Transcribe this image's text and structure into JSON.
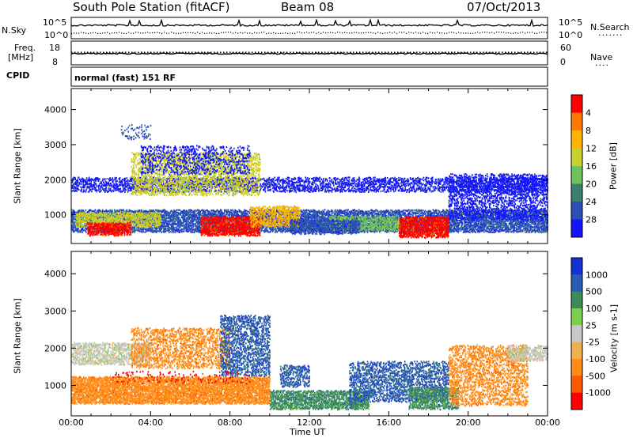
{
  "header": {
    "station": "South Pole Station (fitACF)",
    "beam": "Beam 08",
    "date": "07/Oct/2013"
  },
  "panels": {
    "nsky": {
      "label": "N.Sky",
      "right_label": "N.Search",
      "ticks_left": [
        "10^5",
        "10^0"
      ],
      "ticks_right": [
        "10^5",
        "10^0"
      ]
    },
    "freq": {
      "label_line1": "Freq.",
      "label_line2": "[MHz]",
      "right_label": "Nave",
      "ticks_left": [
        "18",
        "8"
      ],
      "ticks_right": [
        "60",
        "0"
      ]
    },
    "cpid": {
      "label": "CPID",
      "text": "normal (fast) 151 RF"
    }
  },
  "chart_data": [
    {
      "type": "heatmap",
      "name": "power",
      "ylabel": "Slant Range [km]",
      "ylim": [
        180,
        4600
      ],
      "yticks": [
        "1000",
        "2000",
        "3000",
        "4000"
      ],
      "colorbar": {
        "label": "Power [dB]",
        "colors": [
          "#1414ff",
          "#2a4fb8",
          "#3c7f6e",
          "#6ec25e",
          "#c8d22a",
          "#ffb400",
          "#ff7800",
          "#ff0000"
        ],
        "ticks": [
          "4",
          "8",
          "12",
          "16",
          "20",
          "24",
          "28"
        ]
      },
      "regions": [
        {
          "t0": 0.0,
          "t1": 24.0,
          "r0": 1700,
          "r1": 2100,
          "color": 0,
          "density": 0.35
        },
        {
          "t0": 0.0,
          "t1": 24.0,
          "r0": 550,
          "r1": 1200,
          "color": 1,
          "density": 0.55
        },
        {
          "t0": 0.2,
          "t1": 4.5,
          "r0": 700,
          "r1": 1100,
          "color": 4,
          "density": 0.5
        },
        {
          "t0": 0.8,
          "t1": 3.0,
          "r0": 450,
          "r1": 800,
          "color": 7,
          "density": 0.6
        },
        {
          "t0": 6.5,
          "t1": 9.5,
          "r0": 450,
          "r1": 1000,
          "color": 7,
          "density": 0.65
        },
        {
          "t0": 9.0,
          "t1": 11.5,
          "r0": 700,
          "r1": 1300,
          "color": 5,
          "density": 0.4
        },
        {
          "t0": 16.5,
          "t1": 19.0,
          "r0": 400,
          "r1": 1000,
          "color": 7,
          "density": 0.65
        },
        {
          "t0": 13.0,
          "t1": 16.5,
          "r0": 600,
          "r1": 1000,
          "color": 3,
          "density": 0.5
        },
        {
          "t0": 3.0,
          "t1": 9.5,
          "r0": 1600,
          "r1": 2800,
          "color": 4,
          "density": 0.3
        },
        {
          "t0": 3.5,
          "t1": 9.0,
          "r0": 2200,
          "r1": 3000,
          "color": 0,
          "density": 0.18
        },
        {
          "t0": 19.0,
          "t1": 24.0,
          "r0": 900,
          "r1": 2200,
          "color": 0,
          "density": 0.3
        },
        {
          "t0": 11.0,
          "t1": 14.5,
          "r0": 500,
          "r1": 900,
          "color": 1,
          "density": 0.5
        },
        {
          "t0": 2.5,
          "t1": 4.0,
          "r0": 3200,
          "r1": 3600,
          "color": 1,
          "density": 0.1
        }
      ]
    },
    {
      "type": "heatmap",
      "name": "velocity",
      "xlabel": "Time UT",
      "ylabel": "Slant Range [km]",
      "ylim": [
        180,
        4600
      ],
      "yticks": [
        "1000",
        "2000",
        "3000",
        "4000"
      ],
      "xticks": [
        "00:00",
        "04:00",
        "08:00",
        "12:00",
        "16:00",
        "20:00",
        "00:00"
      ],
      "colorbar": {
        "label": "Velocity [m s-1]",
        "colors": [
          "#ff0000",
          "#ff5a00",
          "#ff8c14",
          "#f0b050",
          "#c8c8c8",
          "#7cd050",
          "#3c8c5a",
          "#2a5ab4",
          "#1432d2"
        ],
        "ticks": [
          "1000",
          "500",
          "100",
          "25",
          "-25",
          "-100",
          "-500",
          "-1000"
        ]
      },
      "regions": [
        {
          "t0": 0.0,
          "t1": 10.0,
          "r0": 550,
          "r1": 1250,
          "color": 2,
          "density": 0.7
        },
        {
          "t0": 0.0,
          "t1": 4.0,
          "r0": 1600,
          "r1": 2200,
          "color": 4,
          "density": 0.45
        },
        {
          "t0": 3.0,
          "t1": 8.0,
          "r0": 1500,
          "r1": 2600,
          "color": 2,
          "density": 0.3
        },
        {
          "t0": 7.5,
          "t1": 10.0,
          "r0": 1300,
          "r1": 2900,
          "color": 7,
          "density": 0.35
        },
        {
          "t0": 10.0,
          "t1": 15.0,
          "r0": 400,
          "r1": 900,
          "color": 6,
          "density": 0.6
        },
        {
          "t0": 10.5,
          "t1": 12.0,
          "r0": 1000,
          "r1": 1600,
          "color": 7,
          "density": 0.35
        },
        {
          "t0": 14.0,
          "t1": 19.0,
          "r0": 600,
          "r1": 1700,
          "color": 7,
          "density": 0.35
        },
        {
          "t0": 17.0,
          "t1": 19.5,
          "r0": 400,
          "r1": 1000,
          "color": 6,
          "density": 0.5
        },
        {
          "t0": 19.0,
          "t1": 23.0,
          "r0": 500,
          "r1": 2100,
          "color": 2,
          "density": 0.3
        },
        {
          "t0": 22.0,
          "t1": 24.0,
          "r0": 1700,
          "r1": 2100,
          "color": 4,
          "density": 0.45
        },
        {
          "t0": 2.0,
          "t1": 9.0,
          "r0": 1100,
          "r1": 1400,
          "color": 0,
          "density": 0.08
        }
      ]
    }
  ]
}
